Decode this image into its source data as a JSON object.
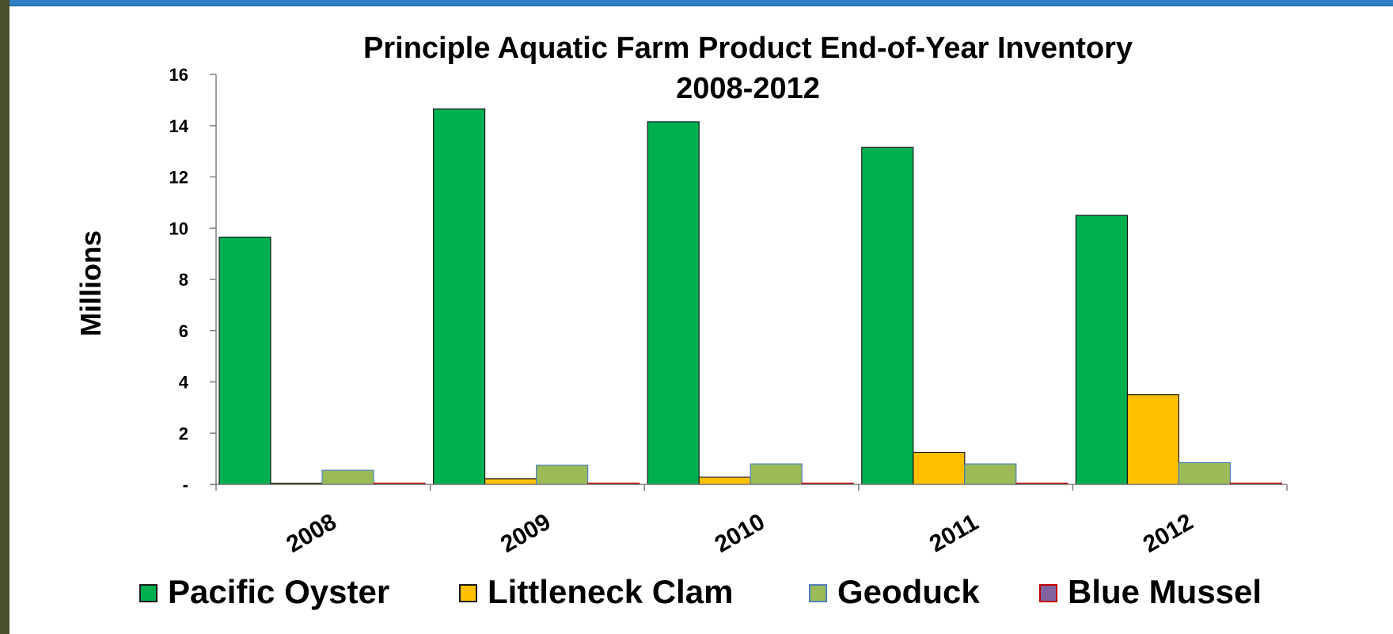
{
  "chart_data": {
    "type": "bar",
    "title_lines": [
      "Principle Aquatic Farm Product End-of-Year Inventory",
      "2008-2012"
    ],
    "ylabel": "Millions",
    "xlabel": "",
    "categories": [
      "2008",
      "2009",
      "2010",
      "2011",
      "2012"
    ],
    "ylim": [
      0,
      16
    ],
    "yticks": [
      {
        "value": 0,
        "label": "-"
      },
      {
        "value": 2,
        "label": "2"
      },
      {
        "value": 4,
        "label": "4"
      },
      {
        "value": 6,
        "label": "6"
      },
      {
        "value": 8,
        "label": "8"
      },
      {
        "value": 10,
        "label": "10"
      },
      {
        "value": 12,
        "label": "12"
      },
      {
        "value": 14,
        "label": "14"
      },
      {
        "value": 16,
        "label": "16"
      }
    ],
    "grid": false,
    "legend_position": "bottom",
    "series": [
      {
        "name": "Pacific Oyster",
        "values": [
          9.65,
          14.65,
          14.15,
          13.15,
          10.5
        ],
        "color": "#00b050",
        "stroke": "#1a1a1a",
        "legend_stroke": "#1a1a1a"
      },
      {
        "name": "Littleneck Clam",
        "values": [
          0.02,
          0.22,
          0.28,
          1.25,
          3.5
        ],
        "color": "#ffc000",
        "stroke": "#1a1a1a",
        "legend_stroke": "#1a1a1a"
      },
      {
        "name": "Geoduck",
        "values": [
          0.55,
          0.75,
          0.8,
          0.8,
          0.85
        ],
        "color": "#9bbb59",
        "stroke": "#4f81bd",
        "legend_stroke": "#4f81bd"
      },
      {
        "name": "Blue Mussel",
        "values": [
          0.05,
          0.05,
          0.05,
          0.05,
          0.05
        ],
        "color": "#8064a2",
        "stroke": "#c00000",
        "legend_stroke": "#c00000"
      }
    ]
  },
  "frame": {
    "top_bar_color": "#2f7fc4",
    "left_bar_color": "#4a4f2c"
  }
}
